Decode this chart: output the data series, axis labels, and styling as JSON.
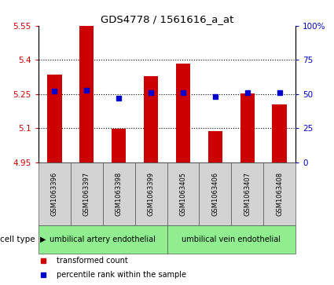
{
  "title": "GDS4778 / 1561616_a_at",
  "samples": [
    "GSM1063396",
    "GSM1063397",
    "GSM1063398",
    "GSM1063399",
    "GSM1063405",
    "GSM1063406",
    "GSM1063407",
    "GSM1063408"
  ],
  "bar_values": [
    5.335,
    5.548,
    5.097,
    5.328,
    5.385,
    5.088,
    5.253,
    5.205
  ],
  "percentile_values": [
    52,
    53,
    47,
    51,
    51,
    48,
    51,
    51
  ],
  "bar_bottom": 4.95,
  "ylim_left": [
    4.95,
    5.55
  ],
  "ylim_right": [
    0,
    100
  ],
  "yticks_left": [
    4.95,
    5.1,
    5.25,
    5.4,
    5.55
  ],
  "ytick_labels_left": [
    "4.95",
    "5.1",
    "5.25",
    "5.4",
    "5.55"
  ],
  "yticks_right": [
    0,
    25,
    50,
    75,
    100
  ],
  "ytick_labels_right": [
    "0",
    "25",
    "50",
    "75",
    "100%"
  ],
  "hlines": [
    5.1,
    5.25,
    5.4
  ],
  "bar_color": "#cc0000",
  "percentile_color": "#0000cc",
  "bar_width": 0.45,
  "cell_type_groups": [
    {
      "label": "umbilical artery endothelial",
      "indices": [
        0,
        1,
        2,
        3
      ],
      "color": "#90ee90"
    },
    {
      "label": "umbilical vein endothelial",
      "indices": [
        4,
        5,
        6,
        7
      ],
      "color": "#90ee90"
    }
  ],
  "cell_type_label": "cell type",
  "legend_bar_label": "transformed count",
  "legend_pct_label": "percentile rank within the sample",
  "tick_color_left": "#cc0000",
  "tick_color_right": "#0000cc",
  "background_color": "#ffffff",
  "plot_bg": "#ffffff",
  "xticklabel_bg": "#d3d3d3"
}
